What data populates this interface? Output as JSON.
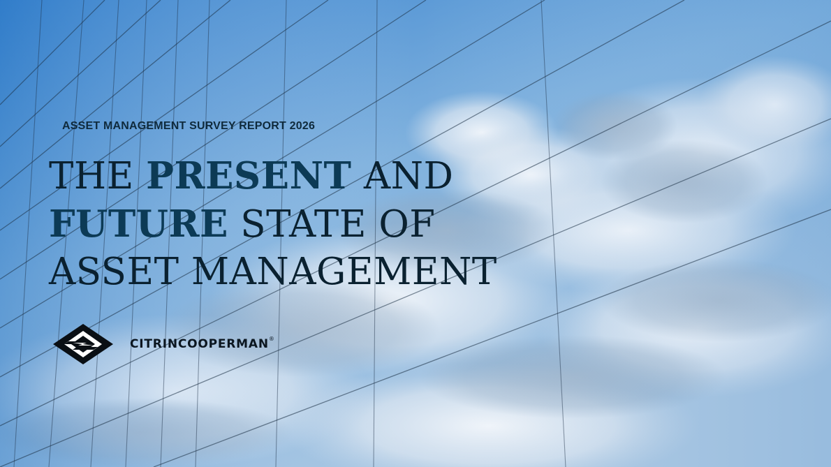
{
  "cover": {
    "eyebrow": "ASSET MANAGEMENT SURVEY REPORT 2026",
    "headline": {
      "line1_a": "THE ",
      "line1_b": "PRESENT",
      "line1_c": " AND",
      "line2_a": "FUTURE",
      "line2_b": " STATE OF",
      "line3": "ASSET MANAGEMENT"
    },
    "logo": {
      "icon": "citrincooperman-mark-icon",
      "name": "CITRINCOOPERMAN",
      "mark": "®"
    },
    "background": {
      "description_icon": "glass-building-sky-image",
      "sky_top": "#3f86cf",
      "sky_bottom": "#a9c9e6",
      "cloud": "#eef3f8"
    }
  }
}
